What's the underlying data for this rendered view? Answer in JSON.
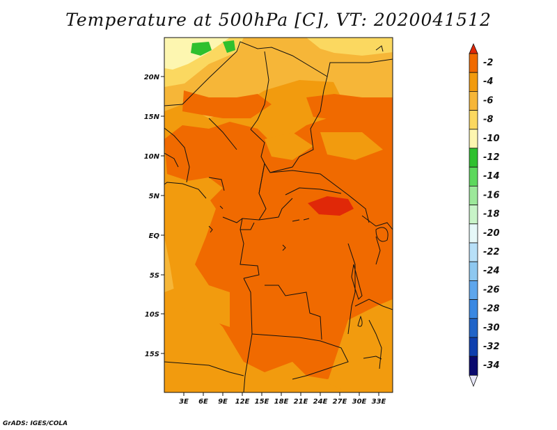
{
  "title": "Temperature at 500hPa [C], VT: 2020041512",
  "credit": "GrADS: IGES/COLA",
  "lat_labels": [
    "20N",
    "15N",
    "10N",
    "5N",
    "EQ",
    "5S",
    "10S",
    "15S"
  ],
  "lon_labels": [
    "3E",
    "6E",
    "9E",
    "12E",
    "15E",
    "18E",
    "21E",
    "24E",
    "27E",
    "30E",
    "33E"
  ],
  "colorbar": {
    "labels": [
      "-2",
      "-4",
      "-6",
      "-8",
      "-10",
      "-12",
      "-14",
      "-16",
      "-18",
      "-20",
      "-22",
      "-24",
      "-26",
      "-28",
      "-30",
      "-32",
      "-34"
    ],
    "colors": [
      "#e02808",
      "#f06a00",
      "#f29b0e",
      "#f6b638",
      "#fbd860",
      "#fdf6b0",
      "#2ec02e",
      "#5cd85c",
      "#9ce89a",
      "#c8f4c8",
      "#e6f8f8",
      "#b8e0f8",
      "#8ec8f0",
      "#5ea6ec",
      "#3a88e2",
      "#2064c8",
      "#0e3fae",
      "#08288e",
      "#0a0a6e",
      "#e6e6f8"
    ]
  },
  "colors": {
    "field_dark": "#f06a00",
    "field_mid": "#f29b0e",
    "field_light": "#f6b638",
    "field_pale": "#fbd860",
    "field_paler": "#fdf6b0",
    "field_hot": "#e02808",
    "field_green": "#2ec02e"
  }
}
